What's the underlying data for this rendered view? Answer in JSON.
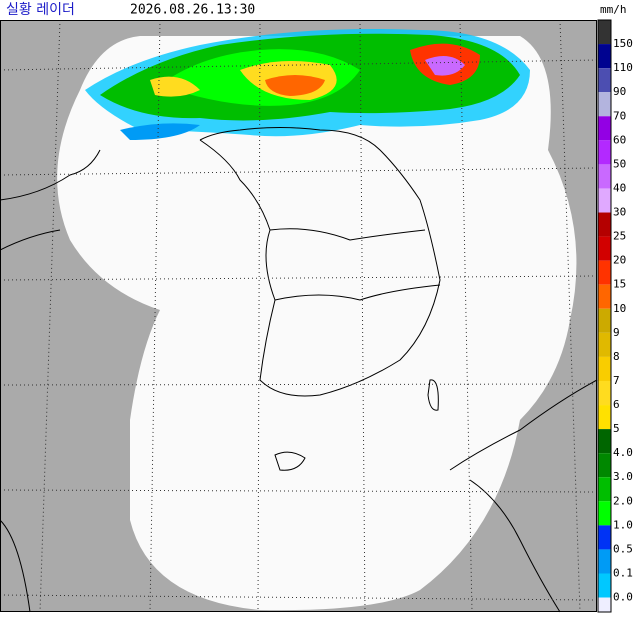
{
  "header": {
    "title": "실황 레이더",
    "time": "2026.08.26.13:30",
    "unit": "mm/h"
  },
  "legend": {
    "items": [
      {
        "label": "150",
        "color": "#333333"
      },
      {
        "label": "110",
        "color": "#000390"
      },
      {
        "label": "90",
        "color": "#4c4eb1"
      },
      {
        "label": "70",
        "color": "#b3b4de"
      },
      {
        "label": "60",
        "color": "#9300e4"
      },
      {
        "label": "50",
        "color": "#b329ff"
      },
      {
        "label": "40",
        "color": "#c969ff"
      },
      {
        "label": "30",
        "color": "#e0a9ff"
      },
      {
        "label": "25",
        "color": "#b40000"
      },
      {
        "label": "20",
        "color": "#d20000"
      },
      {
        "label": "15",
        "color": "#ff3300"
      },
      {
        "label": "10",
        "color": "#ff6600"
      },
      {
        "label": "9",
        "color": "#ccaa00"
      },
      {
        "label": "8",
        "color": "#e0b900"
      },
      {
        "label": "7",
        "color": "#f9cd00"
      },
      {
        "label": "6",
        "color": "#ffdc1f"
      },
      {
        "label": "5",
        "color": "#ffe100"
      },
      {
        "label": "4.0",
        "color": "#006600"
      },
      {
        "label": "3.0",
        "color": "#008800"
      },
      {
        "label": "2.0",
        "color": "#00be00"
      },
      {
        "label": "1.0",
        "color": "#00ff00"
      },
      {
        "label": "0.5",
        "color": "#0033f5"
      },
      {
        "label": "0.1",
        "color": "#009bf5"
      },
      {
        "label": "0.0",
        "color": "#00c8ff"
      }
    ],
    "base_color": "#eeeeff"
  }
}
